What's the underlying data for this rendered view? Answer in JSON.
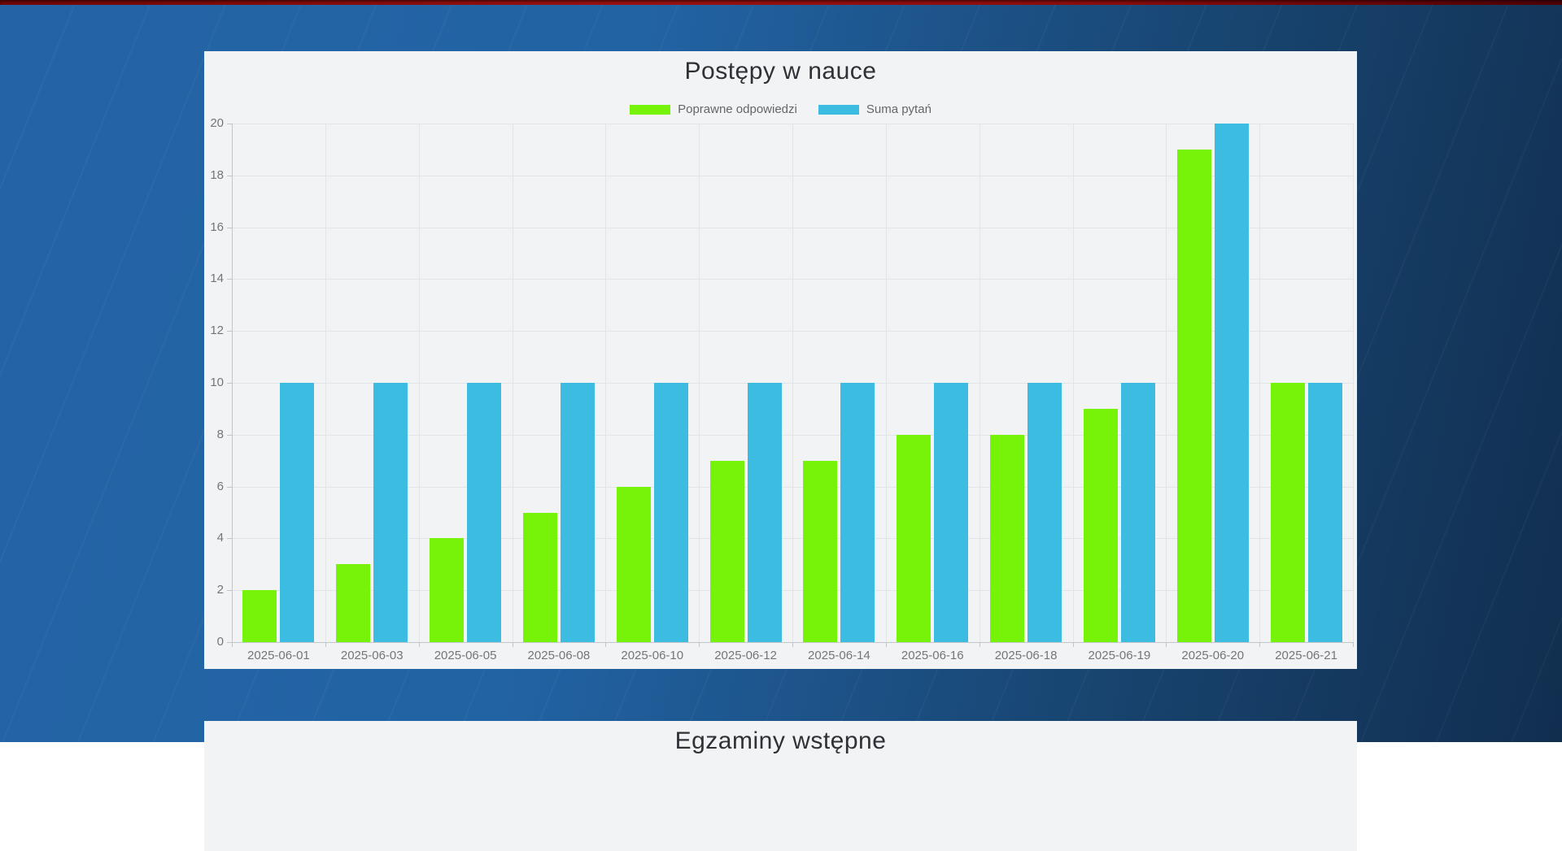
{
  "chart_data": [
    {
      "type": "bar",
      "title": "Postępy w nauce",
      "categories": [
        "2025-06-01",
        "2025-06-03",
        "2025-06-05",
        "2025-06-08",
        "2025-06-10",
        "2025-06-12",
        "2025-06-14",
        "2025-06-16",
        "2025-06-18",
        "2025-06-19",
        "2025-06-20",
        "2025-06-21"
      ],
      "series": [
        {
          "name": "Poprawne odpowiedzi",
          "color": "#76F309",
          "values": [
            2,
            3,
            4,
            5,
            6,
            7,
            7,
            8,
            8,
            9,
            19,
            10
          ]
        },
        {
          "name": "Suma pytań",
          "color": "#3BBCE0",
          "values": [
            10,
            10,
            10,
            10,
            10,
            10,
            10,
            10,
            10,
            10,
            20,
            10
          ]
        }
      ],
      "ylim": [
        0,
        20
      ],
      "ytick_step": 2,
      "yticks": [
        0,
        2,
        4,
        6,
        8,
        10,
        12,
        14,
        16,
        18,
        20
      ],
      "grid": true,
      "legend_position": "top"
    },
    {
      "type": "bar",
      "title": "Egzaminy wstępne",
      "partially_visible": true
    }
  ],
  "theme": {
    "page_gradient_left": "#2464A6",
    "page_gradient_right": "#112E4F",
    "top_stripe_red": "#8F0E0E",
    "panel_background": "#F1F3F5",
    "axis_color": "#C3C6C9",
    "grid_color": "#E2E5E8",
    "label_color": "#757575",
    "legend_text_color": "#666666",
    "title_color": "#2E3135"
  }
}
